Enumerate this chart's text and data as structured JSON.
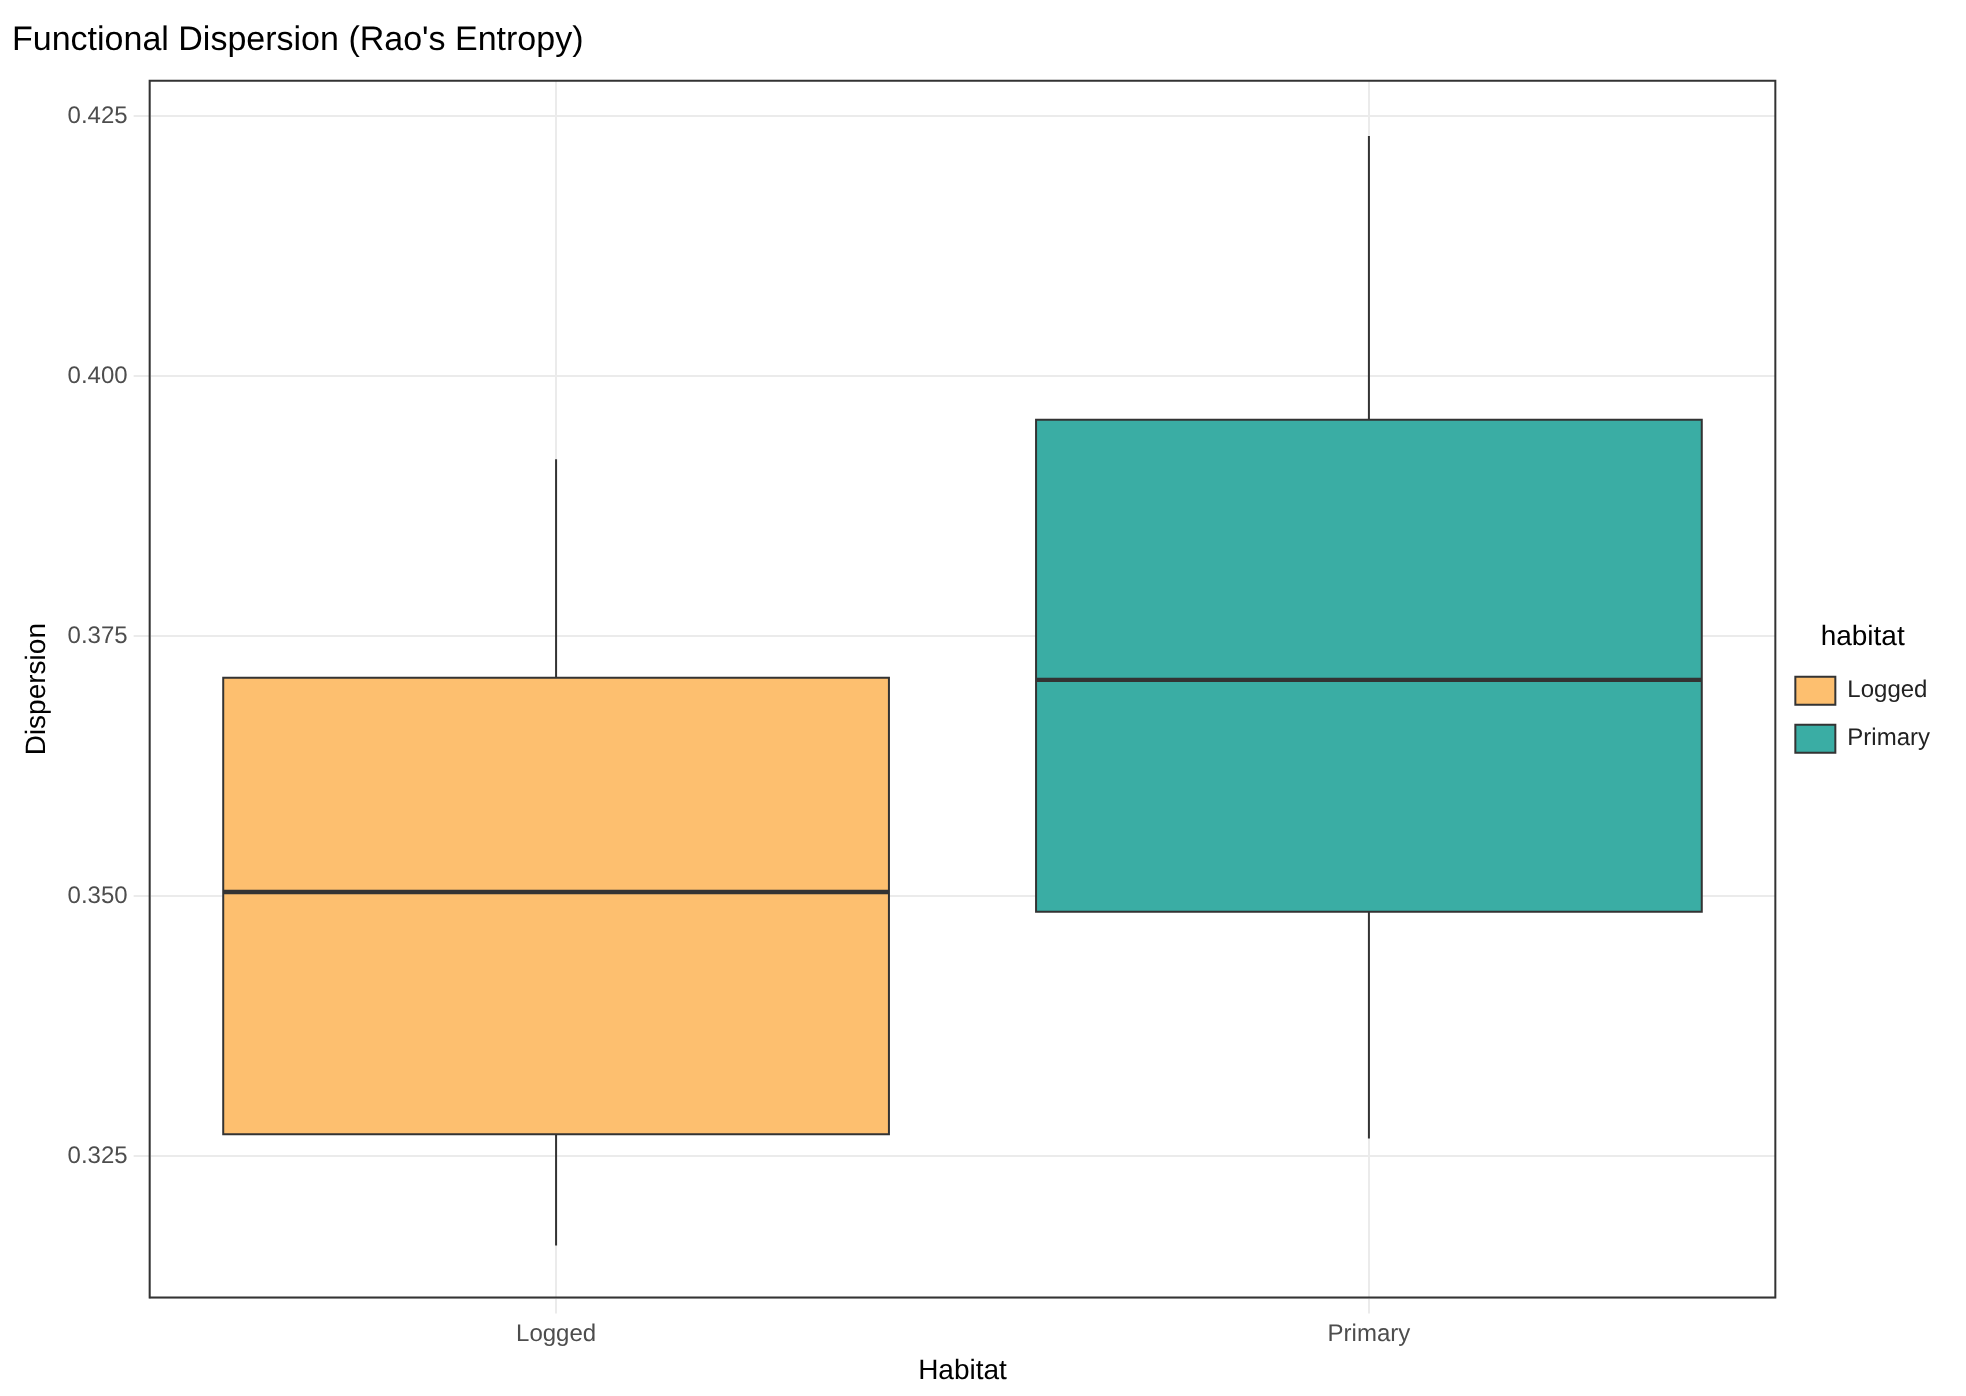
{
  "chart_data": {
    "type": "box",
    "title": "Functional Dispersion (Rao's Entropy)",
    "xlabel": "Habitat",
    "ylabel": "Dispersion",
    "legend_title": "habitat",
    "legend": "right",
    "grid": true,
    "categories": [
      "Logged",
      "Primary"
    ],
    "series": [
      {
        "name": "Logged",
        "color": "#fdbf6f",
        "boxes": [
          {
            "low": 0.3164,
            "q1": 0.3271,
            "median": 0.3504,
            "q3": 0.371,
            "high": 0.392
          },
          null
        ]
      },
      {
        "name": "Primary",
        "color": "#3aada4",
        "boxes": [
          null,
          {
            "low": 0.3267,
            "q1": 0.3485,
            "median": 0.3708,
            "q3": 0.3958,
            "high": 0.4231
          }
        ]
      }
    ],
    "ylim": [
      0.3114,
      0.4284
    ],
    "yticks": [
      {
        "value": 0.325,
        "label": "0.325"
      },
      {
        "value": 0.35,
        "label": "0.350"
      },
      {
        "value": 0.375,
        "label": "0.375"
      },
      {
        "value": 0.4,
        "label": "0.400"
      },
      {
        "value": 0.425,
        "label": "0.425"
      }
    ]
  }
}
